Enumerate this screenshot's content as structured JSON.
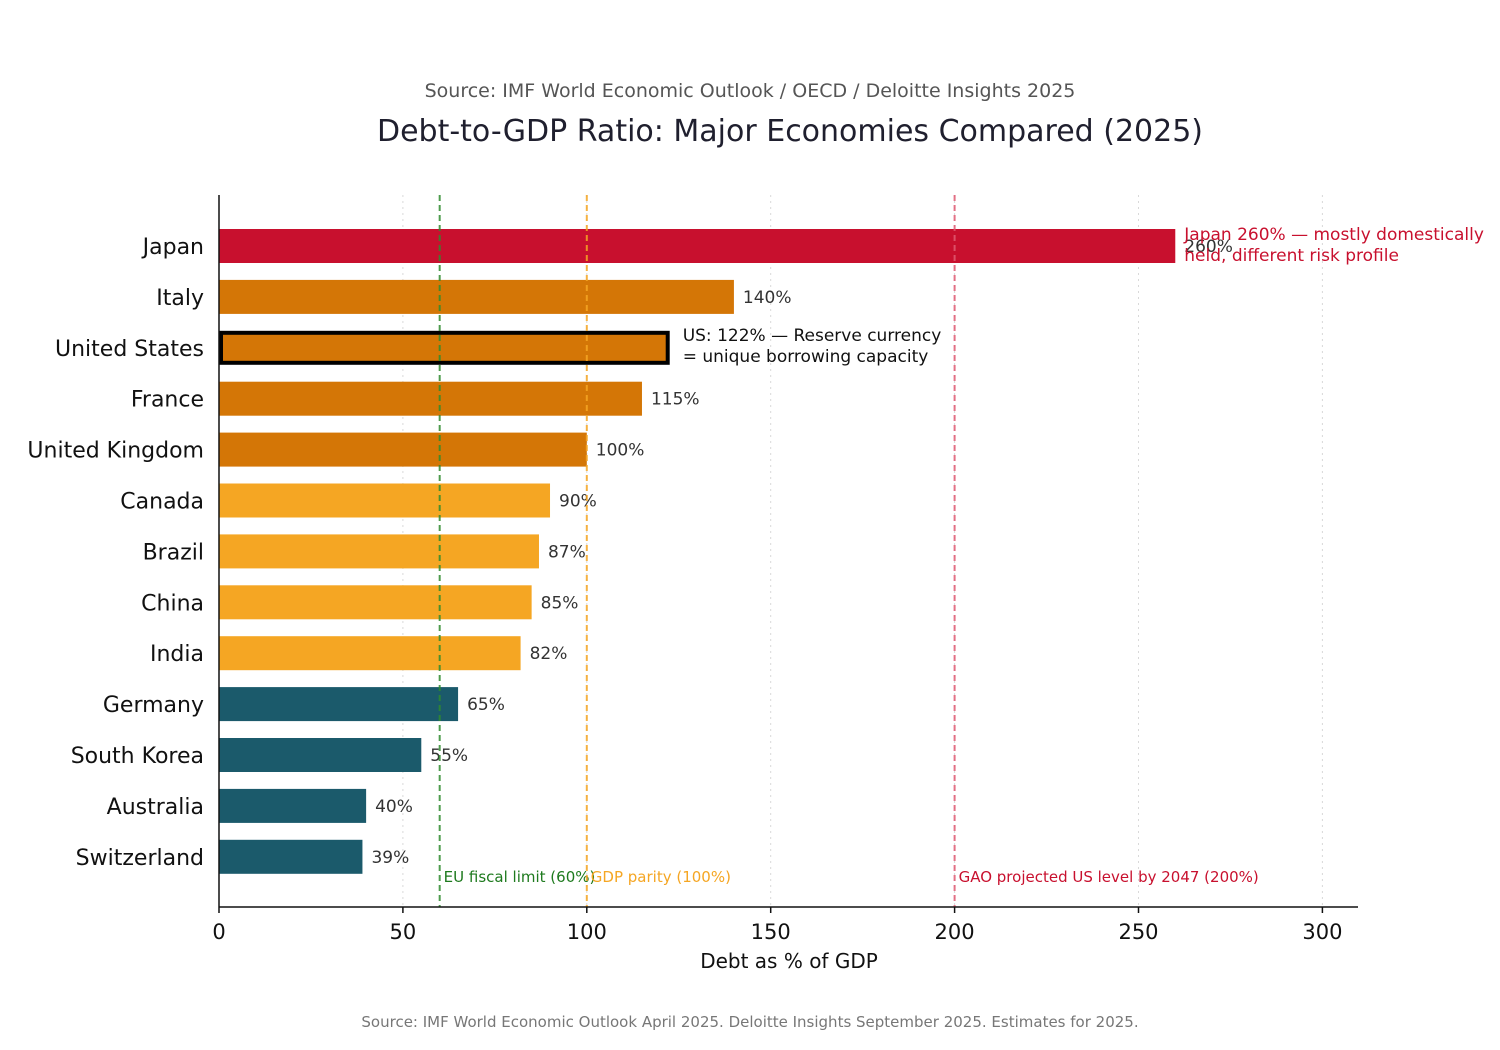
{
  "chart_data": {
    "type": "bar",
    "orientation": "horizontal",
    "subtitle": "Source: IMF World Economic Outlook / OECD / Deloitte Insights 2025",
    "title": "Debt-to-GDP Ratio: Major Economies Compared (2025)",
    "xlabel": "Debt as % of GDP",
    "ylabel": "",
    "xlim": [
      0,
      310
    ],
    "xticks": [
      0,
      50,
      100,
      150,
      200,
      250,
      300
    ],
    "grid": "vertical dotted",
    "categories": [
      "Japan",
      "Italy",
      "United States",
      "France",
      "United Kingdom",
      "Canada",
      "Brazil",
      "China",
      "India",
      "Germany",
      "South Korea",
      "Australia",
      "Switzerland"
    ],
    "values": [
      260,
      140,
      122,
      115,
      100,
      90,
      87,
      85,
      82,
      65,
      55,
      40,
      39
    ],
    "value_labels": [
      "260%",
      "140%",
      "",
      "115%",
      "100%",
      "90%",
      "87%",
      "85%",
      "82%",
      "65%",
      "55%",
      "40%",
      "39%"
    ],
    "bar_colors": [
      "#c8102e",
      "#d47606",
      "#d47606",
      "#d47606",
      "#d47606",
      "#f5a623",
      "#f5a623",
      "#f5a623",
      "#f5a623",
      "#1b5a6b",
      "#1b5a6b",
      "#1b5a6b",
      "#1b5a6b"
    ],
    "highlighted": "United States",
    "reference_lines": [
      {
        "value": 60,
        "label": "EU fiscal limit (60%)",
        "color": "#2e8b2e",
        "text_color": "#1e7a1e"
      },
      {
        "value": 100,
        "label": "GDP parity (100%)",
        "color": "#f5a623",
        "text_color": "#f5a623"
      },
      {
        "value": 200,
        "label": "GAO projected US level by 2047 (200%)",
        "color": "#e05a72",
        "text_color": "#c8102e"
      }
    ],
    "annotations": [
      {
        "category": "Japan",
        "lines": [
          "Japan 260% — mostly domestically",
          "held, different risk profile"
        ],
        "color": "#c8102e"
      },
      {
        "category": "United States",
        "lines": [
          "US: 122% — Reserve currency",
          "= unique borrowing capacity"
        ],
        "color": "#111111"
      }
    ],
    "footnote": "Source: IMF World Economic Outlook April 2025. Deloitte Insights September 2025. Estimates for 2025."
  }
}
